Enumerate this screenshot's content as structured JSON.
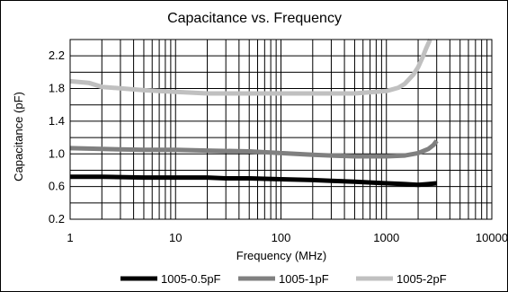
{
  "chart_data": {
    "type": "line",
    "title": "Capacitance vs. Frequency",
    "xlabel": "Frequency (MHz)",
    "ylabel": "Capacitance (pF)",
    "x_scale": "log",
    "xlim": [
      1,
      10000
    ],
    "ylim": [
      0.2,
      2.4
    ],
    "x_ticks": [
      1,
      10,
      100,
      1000,
      10000
    ],
    "x_tick_labels": [
      "1",
      "10",
      "100",
      "1000",
      "10000"
    ],
    "y_ticks": [
      0.2,
      0.6,
      1.0,
      1.4,
      1.8,
      2.2
    ],
    "y_tick_labels": [
      "0.2",
      "0.6",
      "1.0",
      "1.4",
      "1.8",
      "2.2"
    ],
    "grid": true,
    "legend_position": "bottom",
    "series": [
      {
        "name": "1005-0.5pF",
        "color": "#000000",
        "x": [
          1,
          2,
          5,
          10,
          20,
          30,
          50,
          100,
          200,
          300,
          500,
          700,
          1000,
          1500,
          2000,
          2500,
          3000
        ],
        "y": [
          0.72,
          0.72,
          0.71,
          0.71,
          0.71,
          0.7,
          0.7,
          0.69,
          0.68,
          0.67,
          0.66,
          0.65,
          0.64,
          0.63,
          0.62,
          0.63,
          0.64
        ]
      },
      {
        "name": "1005-1pF",
        "color": "#808080",
        "x": [
          1,
          2,
          5,
          10,
          20,
          50,
          100,
          200,
          300,
          500,
          700,
          1000,
          1500,
          2000,
          2500,
          2800,
          3000
        ],
        "y": [
          1.07,
          1.06,
          1.05,
          1.05,
          1.04,
          1.03,
          1.01,
          0.99,
          0.98,
          0.97,
          0.97,
          0.97,
          0.98,
          1.01,
          1.06,
          1.11,
          1.16
        ]
      },
      {
        "name": "1005-2pF",
        "color": "#c0c0c0",
        "x": [
          1,
          1.5,
          2,
          5,
          10,
          20,
          50,
          100,
          200,
          500,
          1000,
          1300,
          1500,
          1800,
          2000,
          2200,
          2400,
          2600
        ],
        "y": [
          1.89,
          1.87,
          1.82,
          1.78,
          1.76,
          1.74,
          1.74,
          1.74,
          1.74,
          1.74,
          1.77,
          1.81,
          1.86,
          1.97,
          2.06,
          2.18,
          2.3,
          2.4
        ]
      }
    ]
  }
}
